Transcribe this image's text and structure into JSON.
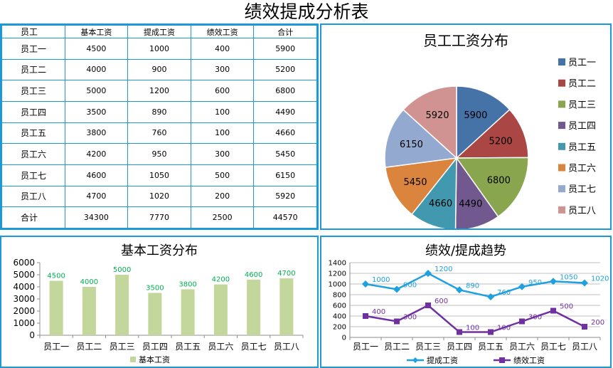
{
  "title": "绩效提成分析表",
  "table": {
    "headers": [
      "员工",
      "基本工资",
      "提成工资",
      "绩效工资",
      "合计"
    ],
    "rows": [
      [
        "员工一",
        "4500",
        "1000",
        "400",
        "5900"
      ],
      [
        "员工二",
        "4000",
        "900",
        "300",
        "5200"
      ],
      [
        "员工三",
        "5000",
        "1200",
        "600",
        "6800"
      ],
      [
        "员工四",
        "3500",
        "890",
        "100",
        "4490"
      ],
      [
        "员工五",
        "3800",
        "760",
        "100",
        "4660"
      ],
      [
        "员工六",
        "4200",
        "950",
        "300",
        "5450"
      ],
      [
        "员工七",
        "4600",
        "1050",
        "500",
        "6150"
      ],
      [
        "员工八",
        "4700",
        "1020",
        "200",
        "5920"
      ]
    ],
    "total_row": [
      "合计",
      "34300",
      "7770",
      "2500",
      "44570"
    ]
  },
  "chart_data": [
    {
      "type": "pie",
      "title": "员工工资分布",
      "categories": [
        "员工一",
        "员工二",
        "员工三",
        "员工四",
        "员工五",
        "员工六",
        "员工七",
        "员工八"
      ],
      "values": [
        5900,
        5200,
        6800,
        4490,
        4660,
        5450,
        6150,
        5920
      ],
      "colors": [
        "#4572a7",
        "#aa4643",
        "#89a54e",
        "#71588f",
        "#4198af",
        "#db843d",
        "#93a9cf",
        "#d19392"
      ],
      "legend": "right",
      "data_labels": true
    },
    {
      "type": "bar",
      "title": "基本工资分布",
      "categories": [
        "员工一",
        "员工二",
        "员工三",
        "员工四",
        "员工五",
        "员工六",
        "员工七",
        "员工八"
      ],
      "series": [
        {
          "name": "基本工资",
          "values": [
            4500,
            4000,
            5000,
            3500,
            3800,
            4200,
            4600,
            4700
          ],
          "color": "#c3d69b"
        }
      ],
      "ylim": [
        0,
        6000
      ],
      "yticks": [
        0,
        1000,
        2000,
        3000,
        4000,
        5000,
        6000
      ],
      "label_color": "#00b050",
      "legend": "bottom",
      "grid": false
    },
    {
      "type": "line",
      "title": "绩效/提成趋势",
      "categories": [
        "员工一",
        "员工二",
        "员工三",
        "员工四",
        "员工五",
        "员工六",
        "员工七",
        "员工八"
      ],
      "series": [
        {
          "name": "提成工资",
          "values": [
            1000,
            900,
            1200,
            890,
            760,
            950,
            1050,
            1020
          ],
          "color": "#1fa0e0",
          "marker": "diamond"
        },
        {
          "name": "绩效工资",
          "values": [
            400,
            300,
            600,
            100,
            100,
            300,
            500,
            200
          ],
          "color": "#7030a0",
          "marker": "square"
        }
      ],
      "ylim": [
        0,
        1400
      ],
      "yticks": [
        0,
        200,
        400,
        600,
        800,
        1000,
        1200,
        1400
      ],
      "legend": "bottom",
      "grid": true
    }
  ]
}
